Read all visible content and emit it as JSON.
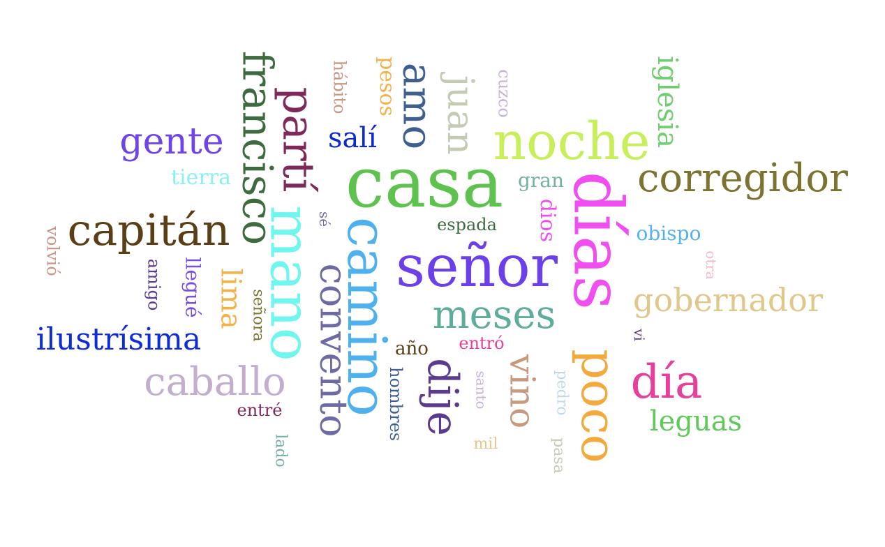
{
  "words": [
    {
      "text": "casa",
      "color": "#5ec24e",
      "orientation": "horizontal"
    },
    {
      "text": "señor",
      "color": "#6b3fea",
      "orientation": "horizontal"
    },
    {
      "text": "día",
      "color": "#e63f9c",
      "orientation": "horizontal"
    },
    {
      "text": "días",
      "color": "#f04ef0",
      "orientation": "vertical"
    },
    {
      "text": "poco",
      "color": "#f4a93c",
      "orientation": "vertical"
    },
    {
      "text": "noche",
      "color": "#c6ef5a",
      "orientation": "horizontal"
    },
    {
      "text": "corregidor",
      "color": "#7a7430",
      "orientation": "horizontal"
    },
    {
      "text": "capitán",
      "color": "#5a3e16",
      "orientation": "horizontal"
    },
    {
      "text": "camino",
      "color": "#4fb0ef",
      "orientation": "vertical"
    },
    {
      "text": "mano",
      "color": "#6ff6ee",
      "orientation": "vertical"
    },
    {
      "text": "francisco",
      "color": "#3d6a3f",
      "orientation": "vertical"
    },
    {
      "text": "partí",
      "color": "#7d2a5a",
      "orientation": "vertical"
    },
    {
      "text": "convento",
      "color": "#6e6ba4",
      "orientation": "vertical"
    },
    {
      "text": "amo",
      "color": "#3f5f8f",
      "orientation": "vertical"
    },
    {
      "text": "juan",
      "color": "#c4cbb4",
      "orientation": "vertical"
    },
    {
      "text": "meses",
      "color": "#5fac9c",
      "orientation": "horizontal"
    },
    {
      "text": "gente",
      "color": "#6e43e8",
      "orientation": "horizontal"
    },
    {
      "text": "ilustrísima",
      "color": "#0d2bd8",
      "orientation": "horizontal"
    },
    {
      "text": "caballo",
      "color": "#c3aed0",
      "orientation": "horizontal"
    },
    {
      "text": "gobernador",
      "color": "#e0c88d",
      "orientation": "horizontal"
    },
    {
      "text": "dije",
      "color": "#5b3b8d",
      "orientation": "vertical"
    },
    {
      "text": "vino",
      "color": "#c79a80",
      "orientation": "vertical"
    },
    {
      "text": "leguas",
      "color": "#5fc95a",
      "orientation": "horizontal"
    },
    {
      "text": "iglesia",
      "color": "#6fcf6f",
      "orientation": "vertical"
    },
    {
      "text": "lima",
      "color": "#f4b146",
      "orientation": "vertical"
    },
    {
      "text": "salí",
      "color": "#0e29d0",
      "orientation": "horizontal"
    },
    {
      "text": "tierra",
      "color": "#8bf0f0",
      "orientation": "horizontal"
    },
    {
      "text": "hábito",
      "color": "#c99685",
      "orientation": "vertical"
    },
    {
      "text": "pesos",
      "color": "#f2b24a",
      "orientation": "vertical"
    },
    {
      "text": "cuzco",
      "color": "#c4b2dc",
      "orientation": "vertical"
    },
    {
      "text": "gran",
      "color": "#74b0a6",
      "orientation": "horizontal"
    },
    {
      "text": "dios",
      "color": "#ee50ea",
      "orientation": "vertical"
    },
    {
      "text": "espada",
      "color": "#3d6a3f",
      "orientation": "horizontal"
    },
    {
      "text": "obispo",
      "color": "#55b0ef",
      "orientation": "horizontal"
    },
    {
      "text": "sé",
      "color": "#6e6ba4",
      "orientation": "vertical"
    },
    {
      "text": "volvió",
      "color": "#c99685",
      "orientation": "vertical"
    },
    {
      "text": "llegué",
      "color": "#7a4de0",
      "orientation": "vertical"
    },
    {
      "text": "amigo",
      "color": "#5b3b8d",
      "orientation": "vertical"
    },
    {
      "text": "señora",
      "color": "#7a7430",
      "orientation": "vertical"
    },
    {
      "text": "otra",
      "color": "#f7b9c4",
      "orientation": "vertical"
    },
    {
      "text": "vi",
      "color": "#5b3b8d",
      "orientation": "vertical"
    },
    {
      "text": "año",
      "color": "#5a3e16",
      "orientation": "horizontal"
    },
    {
      "text": "entró",
      "color": "#e63f9c",
      "orientation": "horizontal"
    },
    {
      "text": "hombres",
      "color": "#3f5f8f",
      "orientation": "vertical"
    },
    {
      "text": "santo",
      "color": "#c4b2dc",
      "orientation": "vertical"
    },
    {
      "text": "pedro",
      "color": "#c0d8e8",
      "orientation": "vertical"
    },
    {
      "text": "entré",
      "color": "#7d2a5a",
      "orientation": "horizontal"
    },
    {
      "text": "mil",
      "color": "#e0c88d",
      "orientation": "horizontal"
    },
    {
      "text": "pasa",
      "color": "#c4cbb4",
      "orientation": "vertical"
    },
    {
      "text": "lado",
      "color": "#74b0a6",
      "orientation": "vertical"
    }
  ]
}
